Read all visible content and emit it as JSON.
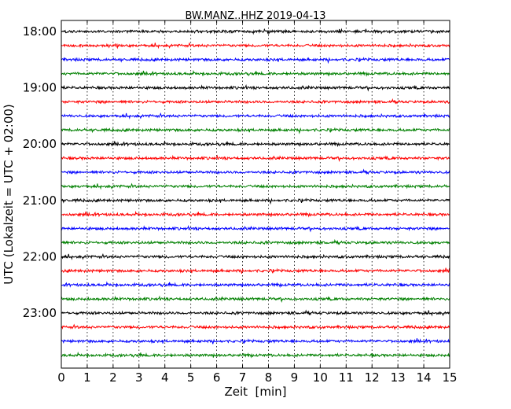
{
  "chart_data": {
    "type": "line",
    "title": "BW.MANZ..HHZ 2019-04-13",
    "xlabel": "Zeit  [min]",
    "ylabel": "UTC (Lokalzeit = UTC + 02:00)",
    "xlim": [
      0,
      15
    ],
    "xticks": [
      0,
      1,
      2,
      3,
      4,
      5,
      6,
      7,
      8,
      9,
      10,
      11,
      12,
      13,
      14,
      15
    ],
    "ytick_labels": [
      "18:00",
      "19:00",
      "20:00",
      "21:00",
      "22:00",
      "23:00"
    ],
    "trace_start_minutes": [
      "18:00",
      "18:15",
      "18:30",
      "18:45",
      "19:00",
      "19:15",
      "19:30",
      "19:45",
      "20:00",
      "20:15",
      "20:30",
      "20:45",
      "21:00",
      "21:15",
      "21:30",
      "21:45",
      "22:00",
      "22:15",
      "22:30",
      "22:45",
      "23:00",
      "23:15",
      "23:30",
      "23:45"
    ],
    "trace_colors": [
      "#000000",
      "#ff0000",
      "#0000ff",
      "#008000"
    ],
    "grid": "vertical-dotted"
  }
}
